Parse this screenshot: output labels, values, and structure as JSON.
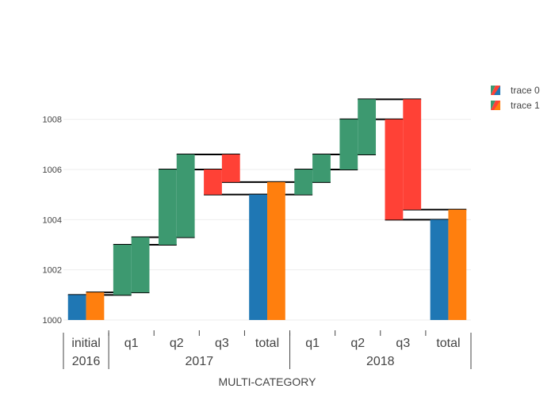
{
  "chart_data": {
    "type": "waterfall",
    "title": "",
    "xlabel": "MULTI-CATEGORY",
    "ylabel": "",
    "ylim": [
      1000,
      1009.6
    ],
    "yticks": [
      1000,
      1002,
      1004,
      1006,
      1008
    ],
    "grid": true,
    "legend_position": "top-right",
    "groups": [
      {
        "label": "2016",
        "categories": [
          "initial"
        ]
      },
      {
        "label": "2017",
        "categories": [
          "q1",
          "q2",
          "q3",
          "total"
        ]
      },
      {
        "label": "2018",
        "categories": [
          "q1",
          "q2",
          "q3",
          "total"
        ]
      }
    ],
    "categories": [
      {
        "label": "initial",
        "group": "2016"
      },
      {
        "label": "q1",
        "group": "2017"
      },
      {
        "label": "q2",
        "group": "2017"
      },
      {
        "label": "q3",
        "group": "2017"
      },
      {
        "label": "total",
        "group": "2017"
      },
      {
        "label": "q1",
        "group": "2018"
      },
      {
        "label": "q2",
        "group": "2018"
      },
      {
        "label": "q3",
        "group": "2018"
      },
      {
        "label": "total",
        "group": "2018"
      }
    ],
    "series": [
      {
        "name": "trace 0",
        "base": 1000,
        "measure": [
          "absolute",
          "relative",
          "relative",
          "relative",
          "total",
          "relative",
          "relative",
          "relative",
          "total"
        ],
        "values": [
          1,
          2,
          3,
          -1,
          null,
          1,
          2,
          -4,
          null
        ],
        "total_color": "#1f77b4",
        "increasing_color": "#3d9970",
        "decreasing_color": "#ff4136"
      },
      {
        "name": "trace 1",
        "base": 1000,
        "measure": [
          "absolute",
          "relative",
          "relative",
          "relative",
          "total",
          "relative",
          "relative",
          "relative",
          "total"
        ],
        "values": [
          1.1,
          2.2,
          3.3,
          -1.1,
          null,
          1.1,
          2.2,
          -4.4,
          null
        ],
        "total_color": "#ff7f0e",
        "increasing_color": "#3d9970",
        "decreasing_color": "#ff4136"
      }
    ],
    "connector_color": "#000000",
    "grid_color": "#eeeeee"
  }
}
